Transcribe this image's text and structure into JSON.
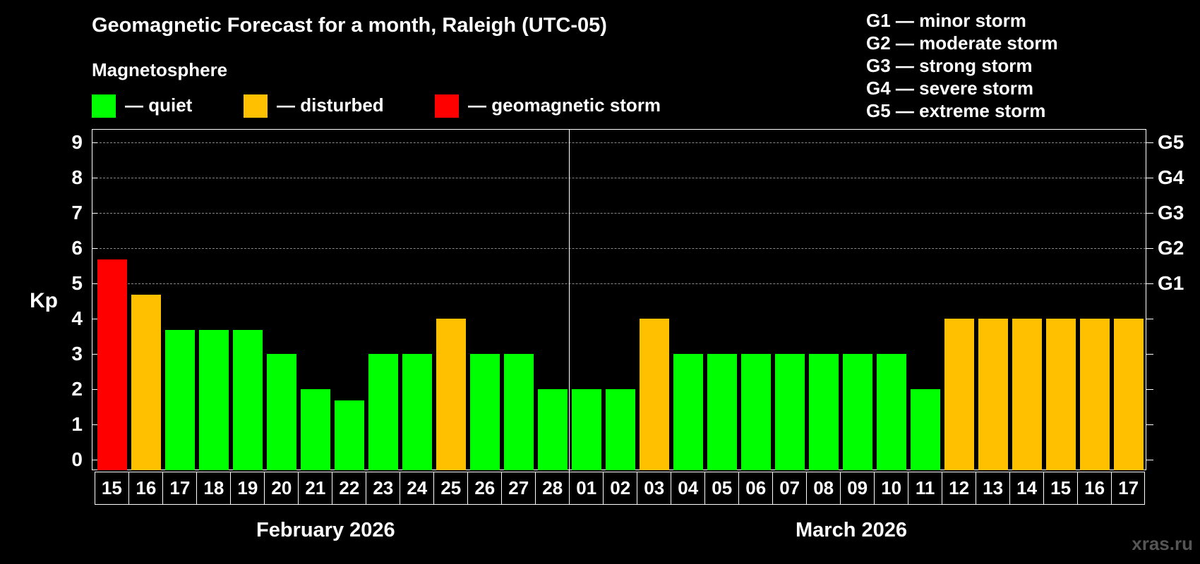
{
  "header": {
    "title": "Geomagnetic Forecast for a month, Raleigh (UTC-05)",
    "section_label": "Magnetosphere"
  },
  "legend": {
    "items": [
      {
        "label": "— quiet",
        "color": "#00ff00"
      },
      {
        "label": "— disturbed",
        "color": "#ffc000"
      },
      {
        "label": "— geomagnetic storm",
        "color": "#ff0000"
      }
    ]
  },
  "storm_scale": [
    "G1 — minor storm",
    "G2 — moderate storm",
    "G3 — strong storm",
    "G4 — severe storm",
    "G5 — extreme storm"
  ],
  "axes": {
    "ylabel": "Kp",
    "y_ticks": [
      "0",
      "1",
      "2",
      "3",
      "4",
      "5",
      "6",
      "7",
      "8",
      "9"
    ],
    "right_ticks": [
      {
        "label": "G1",
        "kp": 5
      },
      {
        "label": "G2",
        "kp": 6
      },
      {
        "label": "G3",
        "kp": 7
      },
      {
        "label": "G4",
        "kp": 8
      },
      {
        "label": "G5",
        "kp": 9
      }
    ]
  },
  "months": [
    "February 2026",
    "March 2026"
  ],
  "watermark": "xras.ru",
  "colors": {
    "quiet": "#00ff00",
    "disturbed": "#ffc000",
    "storm": "#ff0000"
  },
  "chart_data": {
    "type": "bar",
    "title": "Geomagnetic Forecast for a month, Raleigh (UTC-05)",
    "xlabel": "February 2026 / March 2026",
    "ylabel": "Kp",
    "ylim": [
      0,
      9
    ],
    "grid": true,
    "legend_position": "top",
    "categories": [
      "15",
      "16",
      "17",
      "18",
      "19",
      "20",
      "21",
      "22",
      "23",
      "24",
      "25",
      "26",
      "27",
      "28",
      "01",
      "02",
      "03",
      "04",
      "05",
      "06",
      "07",
      "08",
      "09",
      "10",
      "11",
      "12",
      "13",
      "14",
      "15",
      "16",
      "17"
    ],
    "values": [
      5.67,
      4.67,
      3.67,
      3.67,
      3.67,
      3,
      2,
      1.67,
      3,
      3,
      4,
      3,
      3,
      2,
      2,
      2,
      4,
      3,
      3,
      3,
      3,
      3,
      3,
      3,
      2,
      4,
      4,
      4,
      4,
      4,
      4
    ],
    "status": [
      "storm",
      "disturbed",
      "quiet",
      "quiet",
      "quiet",
      "quiet",
      "quiet",
      "quiet",
      "quiet",
      "quiet",
      "disturbed",
      "quiet",
      "quiet",
      "quiet",
      "quiet",
      "quiet",
      "disturbed",
      "quiet",
      "quiet",
      "quiet",
      "quiet",
      "quiet",
      "quiet",
      "quiet",
      "quiet",
      "disturbed",
      "disturbed",
      "disturbed",
      "disturbed",
      "disturbed",
      "disturbed"
    ],
    "right_axis": {
      "G1": 5,
      "G2": 6,
      "G3": 7,
      "G4": 8,
      "G5": 9
    },
    "month_groups": [
      {
        "label": "February 2026",
        "days": [
          "15",
          "16",
          "17",
          "18",
          "19",
          "20",
          "21",
          "22",
          "23",
          "24",
          "25",
          "26",
          "27",
          "28"
        ]
      },
      {
        "label": "March 2026",
        "days": [
          "01",
          "02",
          "03",
          "04",
          "05",
          "06",
          "07",
          "08",
          "09",
          "10",
          "11",
          "12",
          "13",
          "14",
          "15",
          "16",
          "17"
        ]
      }
    ]
  }
}
